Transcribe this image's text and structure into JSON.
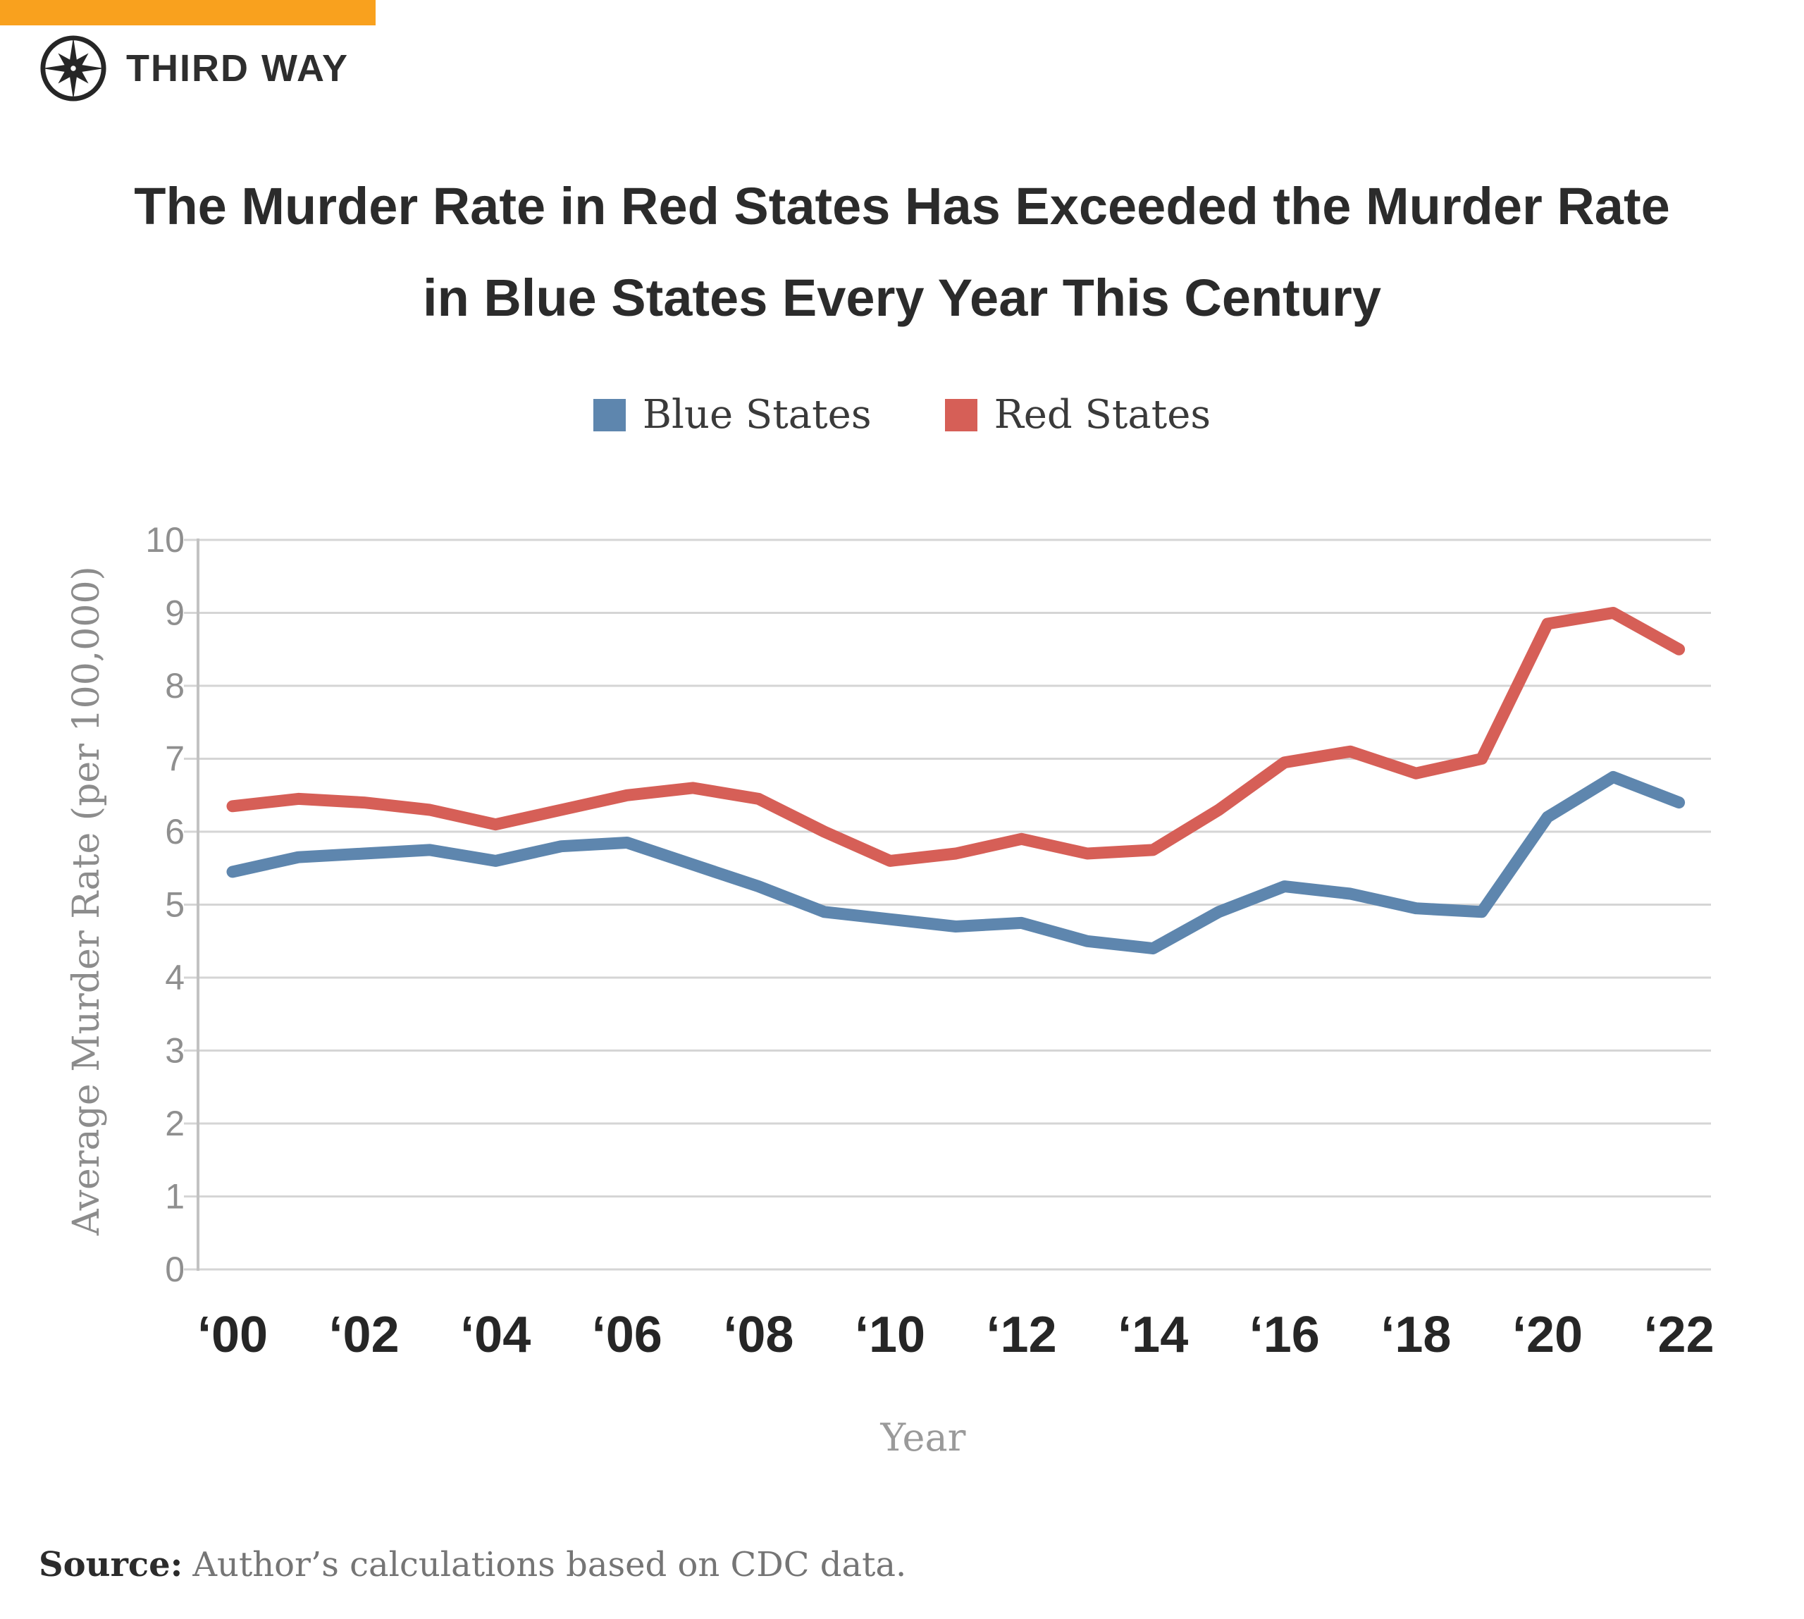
{
  "brand": {
    "logo_text": "THIRD WAY"
  },
  "title": {
    "line1": "The Murder Rate in Red States Has Exceeded the Murder Rate",
    "line2": "in Blue States Every Year This Century"
  },
  "legend": {
    "items": [
      {
        "label": "Blue States",
        "color": "#5E86AE"
      },
      {
        "label": "Red States",
        "color": "#D65F57"
      }
    ]
  },
  "chart_data": {
    "type": "line",
    "title": "The Murder Rate in Red States Has Exceeded the Murder Rate in Blue States Every Year This Century",
    "x": [
      2000,
      2001,
      2002,
      2003,
      2004,
      2005,
      2006,
      2007,
      2008,
      2009,
      2010,
      2011,
      2012,
      2013,
      2014,
      2015,
      2016,
      2017,
      2018,
      2019,
      2020,
      2021,
      2022
    ],
    "series": [
      {
        "name": "Blue States",
        "color": "#5E86AE",
        "values": [
          5.45,
          5.65,
          5.7,
          5.75,
          5.6,
          5.8,
          5.85,
          5.55,
          5.25,
          4.9,
          4.8,
          4.7,
          4.75,
          4.5,
          4.4,
          4.9,
          5.25,
          5.15,
          4.95,
          4.9,
          6.2,
          6.75,
          6.4
        ]
      },
      {
        "name": "Red States",
        "color": "#D65F57",
        "values": [
          6.35,
          6.45,
          6.4,
          6.3,
          6.1,
          6.3,
          6.5,
          6.6,
          6.45,
          6.0,
          5.6,
          5.7,
          5.9,
          5.7,
          5.75,
          6.3,
          6.95,
          7.1,
          6.8,
          7.0,
          8.85,
          9.0,
          8.5
        ]
      }
    ],
    "x_ticks": [
      {
        "index": 0,
        "label": "‘00"
      },
      {
        "index": 2,
        "label": "‘02"
      },
      {
        "index": 4,
        "label": "‘04"
      },
      {
        "index": 6,
        "label": "‘06"
      },
      {
        "index": 8,
        "label": "‘08"
      },
      {
        "index": 10,
        "label": "‘10"
      },
      {
        "index": 12,
        "label": "‘12"
      },
      {
        "index": 14,
        "label": "‘14"
      },
      {
        "index": 16,
        "label": "‘16"
      },
      {
        "index": 18,
        "label": "‘18"
      },
      {
        "index": 20,
        "label": "‘20"
      },
      {
        "index": 22,
        "label": "‘22"
      }
    ],
    "yticks": [
      0,
      1,
      2,
      3,
      4,
      5,
      6,
      7,
      8,
      9,
      10
    ],
    "ylim": [
      0,
      10
    ],
    "xlabel": "Year",
    "ylabel": "Average Murder Rate (per 100,000)",
    "grid": true,
    "legend_position": "top"
  },
  "source": {
    "prefix": "Source:",
    "text": "Author’s calculations based on CDC data."
  },
  "colors": {
    "accent_bar": "#F9A11E",
    "grid": "#D5D5D5",
    "axis": "#C2C2C2",
    "tick_text": "#8F8F8F",
    "title_text": "#2B2B2B",
    "source_text": "#757575"
  }
}
